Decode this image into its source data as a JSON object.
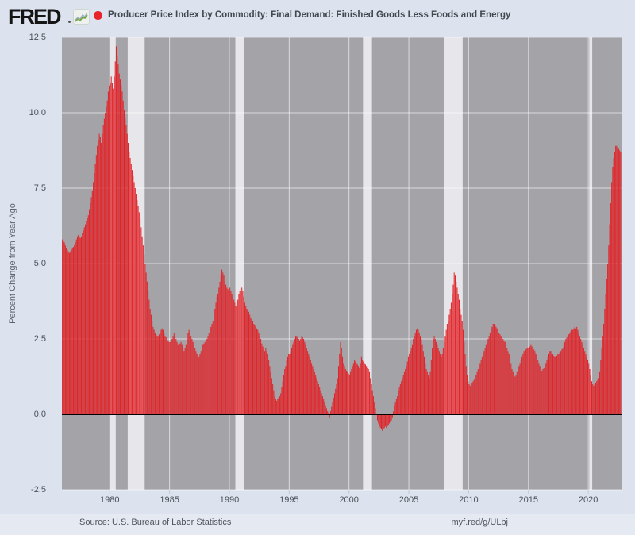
{
  "header": {
    "logo_text": "FRED",
    "title": "Producer Price Index by Commodity: Final Demand: Finished Goods Less Foods and Energy"
  },
  "footer": {
    "source": "Source: U.S. Bureau of Labor Statistics",
    "link": "myf.red/g/ULbj"
  },
  "colors": {
    "bar": "#e0252a",
    "legend_dot": "#e8232a",
    "plot_bg": "#a4a3a8",
    "recession_band": "#e7e6eb",
    "page_bg": "#dce3ee",
    "footer_bg": "#e5e9f2",
    "gridline": "rgba(255,255,255,0.6)",
    "zero_line": "#000000",
    "tick_mark": "#c3c9d4"
  },
  "y_axis": {
    "label": "Percent Change from Year Ago",
    "tick_values": [
      -2.5,
      0.0,
      2.5,
      5.0,
      7.5,
      10.0,
      12.5
    ],
    "tick_labels": [
      "-2.5",
      "0.0",
      "2.5",
      "5.0",
      "7.5",
      "10.0",
      "12.5"
    ]
  },
  "x_axis": {
    "tick_values": [
      1980,
      1985,
      1990,
      1995,
      2000,
      2005,
      2010,
      2015,
      2020
    ],
    "tick_labels": [
      "1980",
      "1985",
      "1990",
      "1995",
      "2000",
      "2005",
      "2010",
      "2015",
      "2020"
    ]
  },
  "chart_data": {
    "type": "bar",
    "title": "Producer Price Index by Commodity: Final Demand: Finished Goods Less Foods and Energy",
    "ylabel": "Percent Change from Year Ago",
    "frequency": "monthly",
    "start": {
      "year": 1976,
      "month": 1
    },
    "end": {
      "year": 2022,
      "month": 9
    },
    "ylim": [
      -2.5,
      12.5
    ],
    "xlim": [
      1976.0,
      2022.78
    ],
    "grid": true,
    "recessions": [
      [
        1980.0,
        1980.5
      ],
      [
        1981.5,
        1982.92
      ],
      [
        1990.5,
        1991.25
      ],
      [
        2001.17,
        2001.92
      ],
      [
        2007.92,
        2009.5
      ],
      [
        2020.08,
        2020.33
      ]
    ],
    "values": [
      5.8,
      5.75,
      5.7,
      5.6,
      5.5,
      5.45,
      5.4,
      5.35,
      5.4,
      5.45,
      5.5,
      5.55,
      5.6,
      5.7,
      5.8,
      5.9,
      5.95,
      5.9,
      5.85,
      5.9,
      6.0,
      6.1,
      6.2,
      6.3,
      6.4,
      6.5,
      6.6,
      6.8,
      7.0,
      7.2,
      7.4,
      7.7,
      8.0,
      8.3,
      8.6,
      8.9,
      9.1,
      9.3,
      9.2,
      9.0,
      9.3,
      9.6,
      9.8,
      10.0,
      10.2,
      10.4,
      10.7,
      10.9,
      11.0,
      11.2,
      11.0,
      10.8,
      11.2,
      11.7,
      12.2,
      11.9,
      11.6,
      11.3,
      11.1,
      10.9,
      10.7,
      10.4,
      10.1,
      9.8,
      9.6,
      9.3,
      9.0,
      8.7,
      8.5,
      8.3,
      8.1,
      7.9,
      7.7,
      7.5,
      7.3,
      7.1,
      6.9,
      6.7,
      6.5,
      6.2,
      5.9,
      5.6,
      5.3,
      5.0,
      4.7,
      4.4,
      4.1,
      3.8,
      3.5,
      3.3,
      3.1,
      2.9,
      2.8,
      2.7,
      2.65,
      2.6,
      2.6,
      2.65,
      2.7,
      2.8,
      2.85,
      2.8,
      2.7,
      2.6,
      2.55,
      2.5,
      2.45,
      2.4,
      2.4,
      2.45,
      2.5,
      2.6,
      2.7,
      2.6,
      2.5,
      2.4,
      2.3,
      2.3,
      2.35,
      2.4,
      2.3,
      2.2,
      2.1,
      2.2,
      2.3,
      2.5,
      2.7,
      2.8,
      2.7,
      2.6,
      2.5,
      2.4,
      2.3,
      2.2,
      2.1,
      2.0,
      1.95,
      1.9,
      2.0,
      2.1,
      2.2,
      2.3,
      2.35,
      2.4,
      2.45,
      2.5,
      2.6,
      2.7,
      2.8,
      2.9,
      3.0,
      3.1,
      3.3,
      3.5,
      3.7,
      3.9,
      4.0,
      4.2,
      4.4,
      4.6,
      4.8,
      4.7,
      4.6,
      4.4,
      4.3,
      4.2,
      4.15,
      4.1,
      4.2,
      4.1,
      4.0,
      3.9,
      3.8,
      3.7,
      3.6,
      3.7,
      3.8,
      4.0,
      4.1,
      4.2,
      4.2,
      4.1,
      3.9,
      3.7,
      3.6,
      3.5,
      3.45,
      3.4,
      3.3,
      3.2,
      3.15,
      3.1,
      3.0,
      2.95,
      2.9,
      2.85,
      2.8,
      2.7,
      2.6,
      2.5,
      2.35,
      2.25,
      2.15,
      2.1,
      2.2,
      2.1,
      2.0,
      1.8,
      1.6,
      1.4,
      1.2,
      1.0,
      0.8,
      0.6,
      0.5,
      0.45,
      0.5,
      0.55,
      0.6,
      0.7,
      0.9,
      1.1,
      1.3,
      1.5,
      1.6,
      1.8,
      1.9,
      2.0,
      2.0,
      2.1,
      2.2,
      2.3,
      2.4,
      2.5,
      2.6,
      2.6,
      2.55,
      2.5,
      2.45,
      2.5,
      2.6,
      2.55,
      2.5,
      2.4,
      2.3,
      2.2,
      2.1,
      2.0,
      1.9,
      1.8,
      1.7,
      1.6,
      1.5,
      1.4,
      1.3,
      1.2,
      1.1,
      1.0,
      0.9,
      0.8,
      0.7,
      0.6,
      0.5,
      0.4,
      0.3,
      0.2,
      0.1,
      0.05,
      -0.1,
      0.1,
      0.25,
      0.4,
      0.55,
      0.7,
      0.85,
      1.0,
      1.2,
      1.6,
      2.0,
      2.4,
      2.2,
      1.9,
      1.7,
      1.6,
      1.5,
      1.45,
      1.4,
      1.35,
      1.3,
      1.4,
      1.5,
      1.6,
      1.7,
      1.8,
      1.75,
      1.7,
      1.65,
      1.6,
      1.55,
      1.7,
      1.9,
      1.8,
      1.75,
      1.7,
      1.65,
      1.6,
      1.55,
      1.5,
      1.4,
      1.2,
      1.0,
      0.8,
      0.6,
      0.4,
      0.2,
      0.0,
      -0.2,
      -0.3,
      -0.4,
      -0.45,
      -0.5,
      -0.55,
      -0.5,
      -0.45,
      -0.4,
      -0.45,
      -0.4,
      -0.35,
      -0.3,
      -0.25,
      -0.2,
      -0.1,
      0.1,
      0.3,
      0.4,
      0.5,
      0.6,
      0.8,
      0.9,
      1.0,
      1.1,
      1.2,
      1.3,
      1.4,
      1.5,
      1.6,
      1.75,
      1.9,
      2.0,
      2.1,
      2.2,
      2.3,
      2.5,
      2.6,
      2.7,
      2.8,
      2.85,
      2.8,
      2.7,
      2.6,
      2.5,
      2.3,
      2.1,
      1.9,
      1.7,
      1.5,
      1.4,
      1.3,
      1.2,
      1.4,
      1.8,
      2.2,
      2.5,
      2.6,
      2.5,
      2.4,
      2.3,
      2.2,
      2.1,
      2.0,
      1.9,
      2.0,
      2.2,
      2.4,
      2.6,
      2.8,
      3.0,
      3.1,
      3.3,
      3.5,
      3.7,
      4.0,
      4.3,
      4.7,
      4.6,
      4.4,
      4.2,
      4.0,
      3.8,
      3.5,
      3.3,
      3.1,
      2.8,
      2.4,
      2.0,
      1.6,
      1.3,
      1.1,
      1.0,
      0.95,
      1.0,
      1.05,
      1.1,
      1.15,
      1.2,
      1.3,
      1.4,
      1.5,
      1.6,
      1.7,
      1.8,
      1.9,
      2.0,
      2.1,
      2.2,
      2.3,
      2.4,
      2.5,
      2.6,
      2.7,
      2.8,
      2.9,
      3.0,
      3.0,
      2.95,
      2.9,
      2.85,
      2.8,
      2.7,
      2.65,
      2.6,
      2.55,
      2.5,
      2.45,
      2.4,
      2.3,
      2.2,
      2.1,
      2.0,
      1.9,
      1.7,
      1.5,
      1.4,
      1.3,
      1.25,
      1.3,
      1.4,
      1.5,
      1.6,
      1.7,
      1.8,
      1.9,
      2.0,
      2.1,
      2.1,
      2.15,
      2.2,
      2.2,
      2.2,
      2.25,
      2.3,
      2.25,
      2.2,
      2.15,
      2.1,
      2.0,
      1.9,
      1.8,
      1.7,
      1.6,
      1.5,
      1.45,
      1.5,
      1.55,
      1.6,
      1.7,
      1.8,
      1.9,
      2.0,
      2.1,
      2.1,
      2.0,
      2.0,
      1.95,
      1.9,
      1.9,
      1.95,
      2.0,
      2.0,
      2.05,
      2.1,
      2.15,
      2.2,
      2.3,
      2.4,
      2.5,
      2.55,
      2.6,
      2.65,
      2.7,
      2.75,
      2.8,
      2.8,
      2.85,
      2.9,
      2.85,
      2.9,
      2.8,
      2.7,
      2.6,
      2.5,
      2.4,
      2.3,
      2.2,
      2.1,
      2.0,
      1.9,
      1.8,
      1.7,
      1.5,
      1.3,
      1.1,
      1.0,
      0.95,
      1.0,
      1.05,
      1.1,
      1.15,
      1.2,
      1.4,
      1.8,
      2.2,
      2.6,
      3.0,
      3.5,
      4.0,
      4.5,
      5.0,
      5.6,
      6.3,
      7.0,
      7.7,
      8.2,
      8.5,
      8.7,
      8.9,
      8.9,
      8.85,
      8.8,
      8.75,
      8.7
    ]
  }
}
